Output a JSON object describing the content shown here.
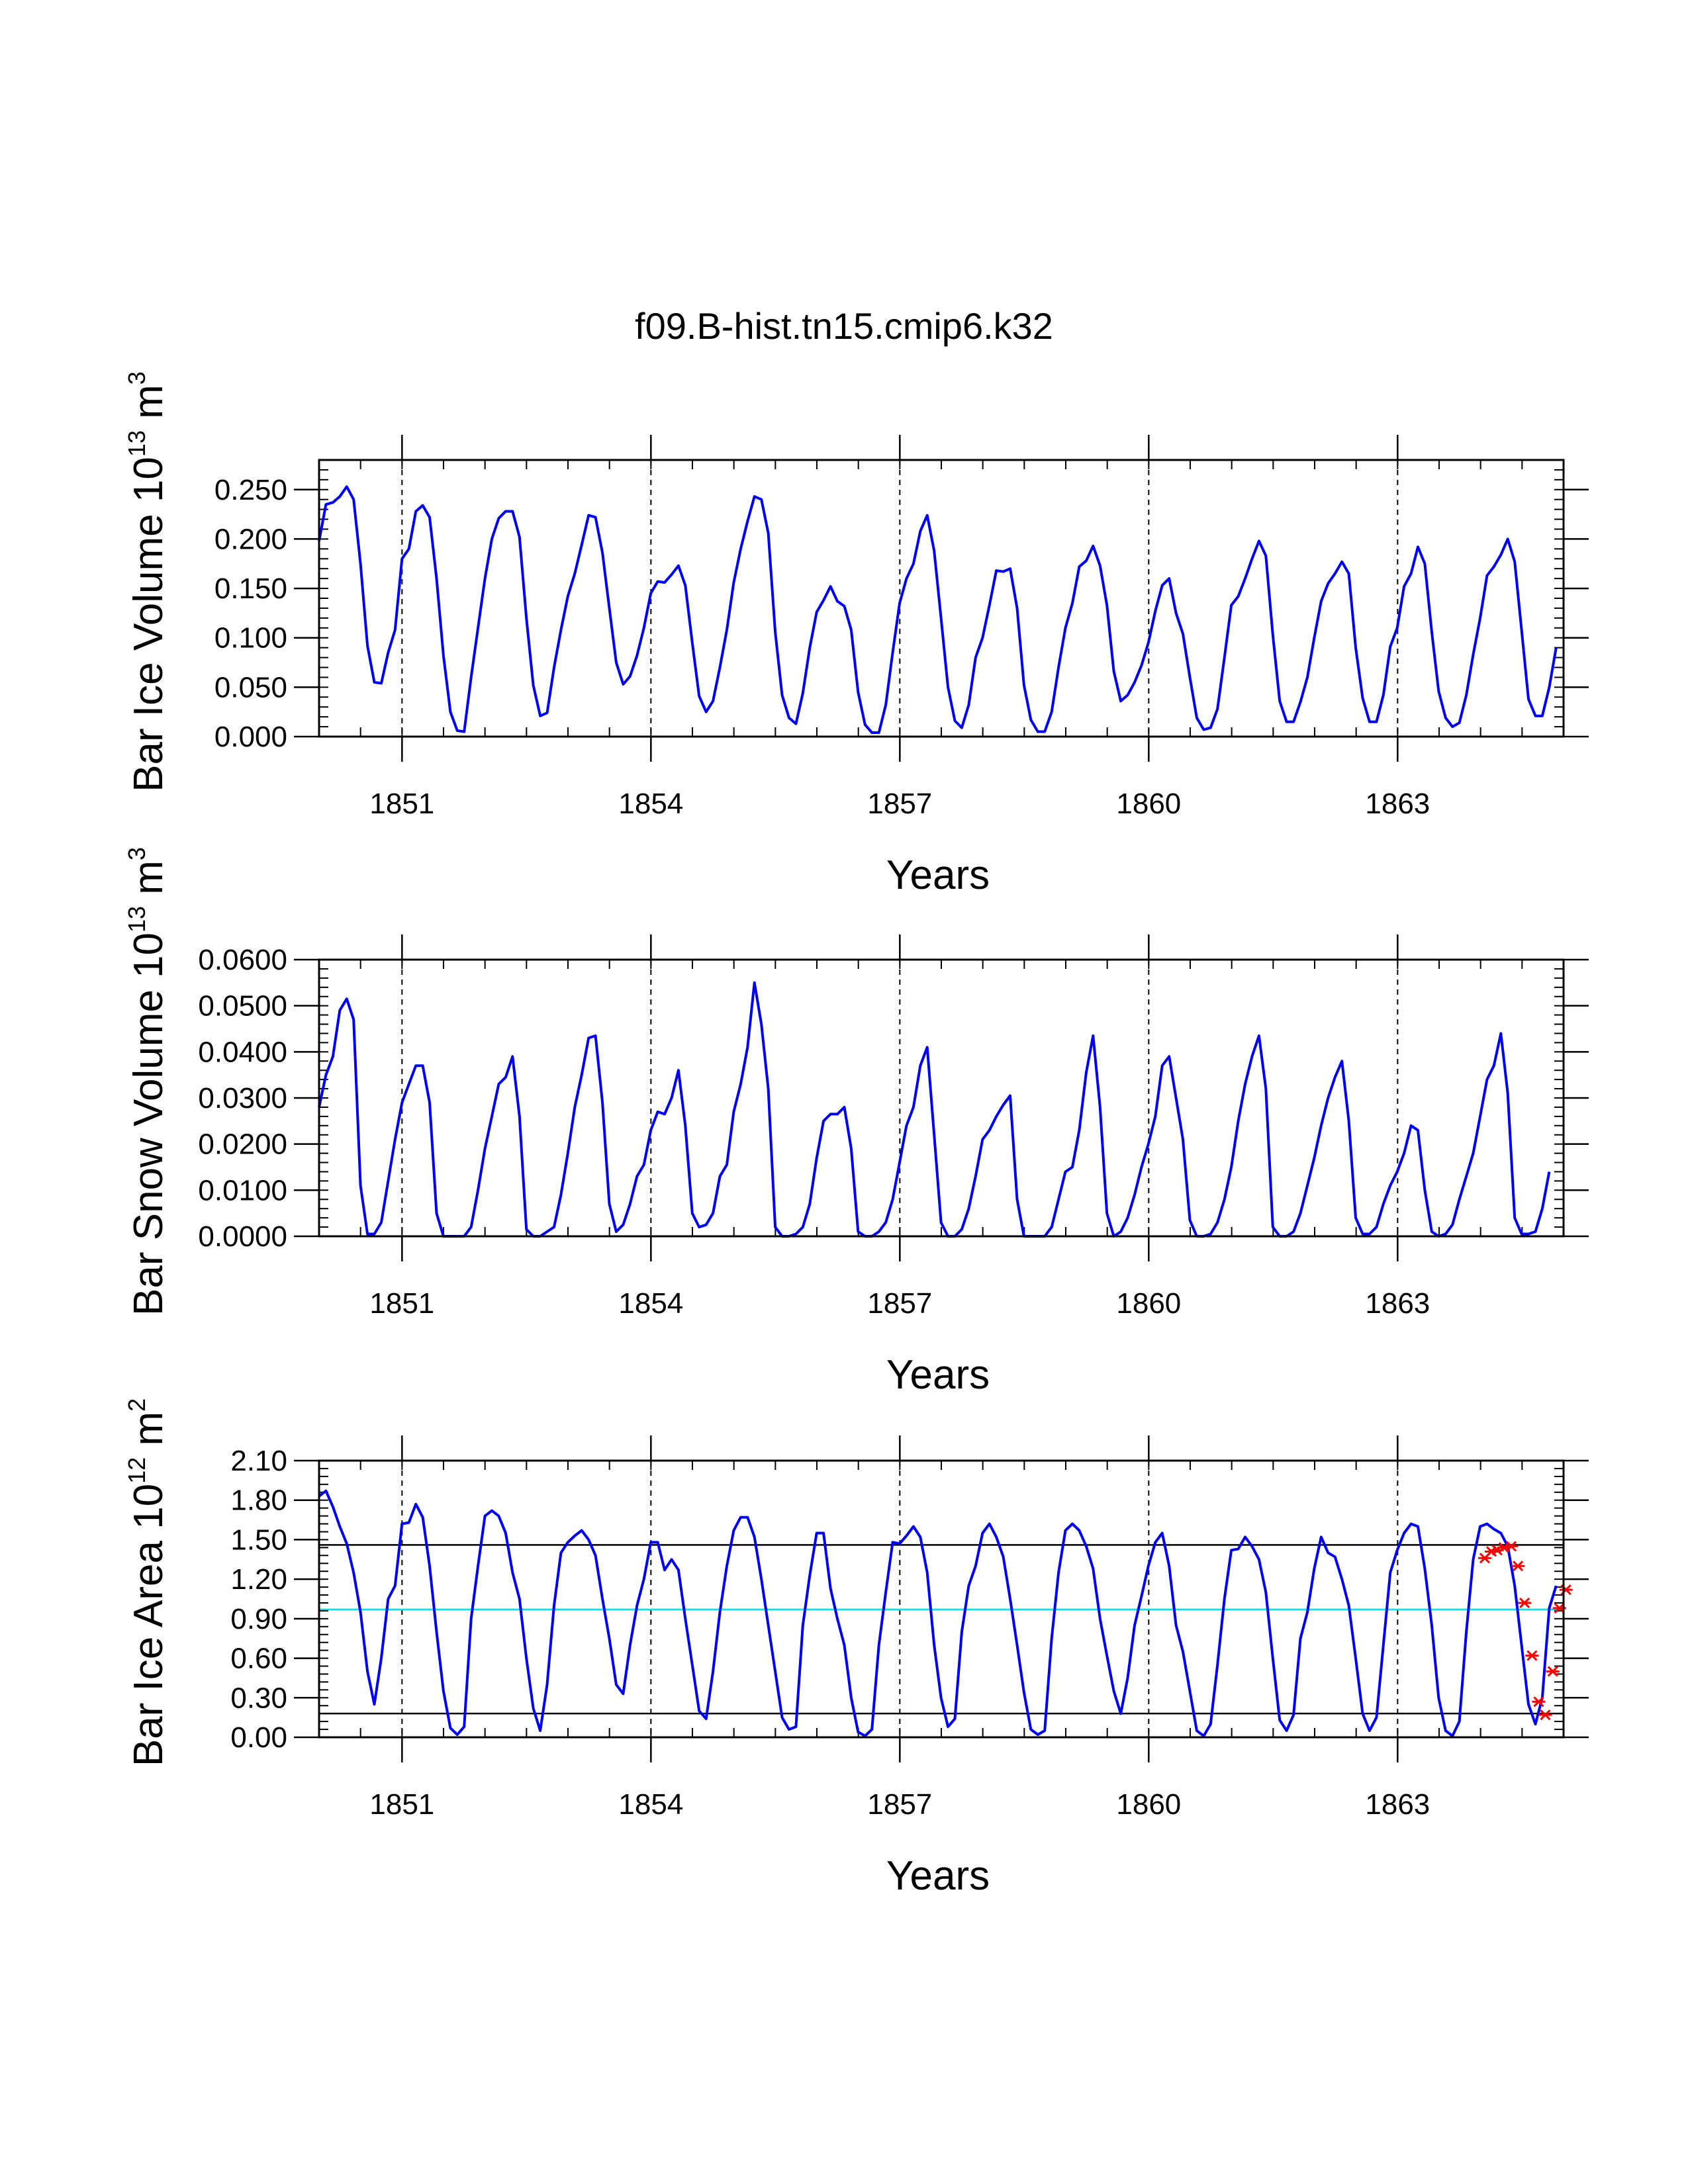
{
  "title": "f09.B-hist.tn15.cmip6.k32",
  "chart_data": [
    {
      "type": "line",
      "id": "ice-volume",
      "ylabel": "Bar Ice Volume 10",
      "ylabel_exp": "13",
      "ylabel_unit": " m",
      "ylabel_unit_exp": "3",
      "xlabel": "Years",
      "xlim": [
        1850.0,
        1865.0
      ],
      "ylim": [
        0.0,
        0.28
      ],
      "yticks": [
        "0.000",
        "0.050",
        "0.100",
        "0.150",
        "0.200",
        "0.250"
      ],
      "ytick_values": [
        0.0,
        0.05,
        0.1,
        0.15,
        0.2,
        0.25
      ],
      "xticks": [
        "1851",
        "1854",
        "1857",
        "1860",
        "1863"
      ],
      "xtick_values": [
        1851,
        1854,
        1857,
        1860,
        1863
      ],
      "vlines": [
        1851,
        1854,
        1857,
        1860,
        1863
      ],
      "hlines": [],
      "series": [
        {
          "name": "ice volume",
          "color": "#0000ff",
          "start_year": 1850.0,
          "step": 0.0833,
          "values": [
            0.198,
            0.235,
            0.237,
            0.243,
            0.253,
            0.24,
            0.175,
            0.092,
            0.055,
            0.054,
            0.085,
            0.108,
            0.18,
            0.19,
            0.228,
            0.234,
            0.222,
            0.16,
            0.082,
            0.025,
            0.006,
            0.005,
            0.06,
            0.11,
            0.16,
            0.2,
            0.221,
            0.228,
            0.228,
            0.202,
            0.12,
            0.052,
            0.021,
            0.024,
            0.07,
            0.108,
            0.142,
            0.165,
            0.194,
            0.224,
            0.222,
            0.186,
            0.13,
            0.075,
            0.053,
            0.061,
            0.082,
            0.11,
            0.145,
            0.157,
            0.156,
            0.164,
            0.173,
            0.153,
            0.095,
            0.041,
            0.025,
            0.036,
            0.07,
            0.108,
            0.156,
            0.19,
            0.218,
            0.243,
            0.24,
            0.206,
            0.106,
            0.042,
            0.019,
            0.013,
            0.044,
            0.09,
            0.126,
            0.138,
            0.152,
            0.137,
            0.132,
            0.108,
            0.045,
            0.012,
            0.004,
            0.004,
            0.032,
            0.085,
            0.135,
            0.16,
            0.175,
            0.208,
            0.224,
            0.188,
            0.12,
            0.05,
            0.016,
            0.009,
            0.032,
            0.08,
            0.1,
            0.133,
            0.168,
            0.167,
            0.17,
            0.13,
            0.052,
            0.017,
            0.005,
            0.005,
            0.025,
            0.07,
            0.11,
            0.135,
            0.172,
            0.178,
            0.193,
            0.173,
            0.133,
            0.066,
            0.036,
            0.042,
            0.055,
            0.072,
            0.095,
            0.127,
            0.153,
            0.16,
            0.125,
            0.104,
            0.06,
            0.019,
            0.007,
            0.009,
            0.028,
            0.08,
            0.133,
            0.142,
            0.16,
            0.18,
            0.198,
            0.183,
            0.103,
            0.036,
            0.015,
            0.015,
            0.035,
            0.06,
            0.1,
            0.137,
            0.155,
            0.165,
            0.177,
            0.165,
            0.09,
            0.039,
            0.015,
            0.015,
            0.042,
            0.091,
            0.11,
            0.152,
            0.165,
            0.192,
            0.175,
            0.106,
            0.046,
            0.019,
            0.01,
            0.014,
            0.042,
            0.083,
            0.12,
            0.163,
            0.172,
            0.184,
            0.2,
            0.177,
            0.108,
            0.038,
            0.021,
            0.021,
            0.05,
            0.09
          ]
        }
      ]
    },
    {
      "type": "line",
      "id": "snow-volume",
      "ylabel": "Bar Snow Volume 10",
      "ylabel_exp": "13",
      "ylabel_unit": " m",
      "ylabel_unit_exp": "3",
      "xlabel": "Years",
      "xlim": [
        1850.0,
        1865.0
      ],
      "ylim": [
        0.0,
        0.06
      ],
      "yticks": [
        "0.0000",
        "0.0100",
        "0.0200",
        "0.0300",
        "0.0400",
        "0.0500",
        "0.0600"
      ],
      "ytick_values": [
        0.0,
        0.01,
        0.02,
        0.03,
        0.04,
        0.05,
        0.06
      ],
      "xticks": [
        "1851",
        "1854",
        "1857",
        "1860",
        "1863"
      ],
      "xtick_values": [
        1851,
        1854,
        1857,
        1860,
        1863
      ],
      "vlines": [
        1851,
        1854,
        1857,
        1860,
        1863
      ],
      "hlines": [],
      "series": [
        {
          "name": "snow volume",
          "color": "#0000ff",
          "start_year": 1850.0,
          "step": 0.0833,
          "values": [
            0.028,
            0.035,
            0.039,
            0.049,
            0.0515,
            0.047,
            0.011,
            0.0005,
            0.0005,
            0.003,
            0.012,
            0.021,
            0.029,
            0.033,
            0.037,
            0.037,
            0.029,
            0.005,
            0.0,
            0.0,
            0.0,
            0.0,
            0.002,
            0.01,
            0.019,
            0.026,
            0.033,
            0.0345,
            0.039,
            0.026,
            0.0015,
            0.0,
            0.0,
            0.001,
            0.002,
            0.009,
            0.018,
            0.028,
            0.035,
            0.043,
            0.0435,
            0.029,
            0.007,
            0.001,
            0.0025,
            0.007,
            0.013,
            0.0155,
            0.023,
            0.027,
            0.0265,
            0.03,
            0.036,
            0.024,
            0.005,
            0.002,
            0.0025,
            0.005,
            0.013,
            0.0155,
            0.027,
            0.033,
            0.041,
            0.055,
            0.046,
            0.032,
            0.002,
            0.0,
            0.0,
            0.0005,
            0.002,
            0.007,
            0.017,
            0.025,
            0.0265,
            0.0265,
            0.028,
            0.019,
            0.001,
            0.0,
            0.0,
            0.001,
            0.003,
            0.008,
            0.016,
            0.024,
            0.028,
            0.037,
            0.041,
            0.022,
            0.003,
            0.0,
            0.0,
            0.0015,
            0.006,
            0.013,
            0.021,
            0.023,
            0.026,
            0.0285,
            0.0305,
            0.008,
            0.0,
            0.0,
            0.0,
            0.0,
            0.002,
            0.008,
            0.014,
            0.015,
            0.023,
            0.0355,
            0.0435,
            0.028,
            0.005,
            0.0,
            0.001,
            0.004,
            0.009,
            0.015,
            0.02,
            0.026,
            0.037,
            0.039,
            0.03,
            0.021,
            0.0035,
            0.0,
            0.0,
            0.0005,
            0.003,
            0.008,
            0.015,
            0.025,
            0.033,
            0.039,
            0.0435,
            0.032,
            0.002,
            0.0,
            0.0,
            0.001,
            0.005,
            0.011,
            0.017,
            0.024,
            0.03,
            0.0345,
            0.038,
            0.025,
            0.004,
            0.0005,
            0.0005,
            0.002,
            0.007,
            0.011,
            0.014,
            0.018,
            0.024,
            0.023,
            0.01,
            0.001,
            0.0,
            0.0005,
            0.0025,
            0.008,
            0.013,
            0.018,
            0.026,
            0.034,
            0.037,
            0.044,
            0.031,
            0.004,
            0.0005,
            0.0005,
            0.001,
            0.006,
            0.014
          ]
        }
      ]
    },
    {
      "type": "line",
      "id": "ice-area",
      "ylabel": "Bar Ice Area 10",
      "ylabel_exp": "12",
      "ylabel_unit": " m",
      "ylabel_unit_exp": "2",
      "xlabel": "Years",
      "xlim": [
        1850.0,
        1865.0
      ],
      "ylim": [
        0.0,
        2.1
      ],
      "yticks": [
        "0.00",
        "0.30",
        "0.60",
        "0.90",
        "1.20",
        "1.50",
        "1.80",
        "2.10"
      ],
      "ytick_values": [
        0.0,
        0.3,
        0.6,
        0.9,
        1.2,
        1.5,
        1.8,
        2.1
      ],
      "xticks": [
        "1851",
        "1854",
        "1857",
        "1860",
        "1863"
      ],
      "xtick_values": [
        1851,
        1854,
        1857,
        1860,
        1863
      ],
      "vlines": [
        1851,
        1854,
        1857,
        1860,
        1863
      ],
      "hlines": [
        {
          "name": "upper reference",
          "value": 1.46,
          "color": "#000000"
        },
        {
          "name": "mean reference",
          "value": 0.97,
          "color": "#00e5e5"
        },
        {
          "name": "lower reference",
          "value": 0.18,
          "color": "#000000"
        }
      ],
      "series": [
        {
          "name": "ice area",
          "color": "#0000ff",
          "start_year": 1850.0,
          "step": 0.0833,
          "values": [
            1.83,
            1.87,
            1.75,
            1.6,
            1.47,
            1.25,
            0.95,
            0.5,
            0.25,
            0.6,
            1.05,
            1.15,
            1.62,
            1.63,
            1.77,
            1.67,
            1.3,
            0.8,
            0.35,
            0.07,
            0.02,
            0.08,
            0.9,
            1.3,
            1.68,
            1.72,
            1.68,
            1.55,
            1.25,
            1.05,
            0.6,
            0.22,
            0.05,
            0.4,
            1.0,
            1.4,
            1.48,
            1.53,
            1.57,
            1.5,
            1.38,
            1.05,
            0.75,
            0.4,
            0.33,
            0.7,
            1.0,
            1.2,
            1.48,
            1.48,
            1.27,
            1.35,
            1.27,
            0.9,
            0.55,
            0.2,
            0.14,
            0.5,
            0.95,
            1.3,
            1.57,
            1.67,
            1.67,
            1.52,
            1.2,
            0.85,
            0.5,
            0.15,
            0.06,
            0.08,
            0.85,
            1.23,
            1.55,
            1.55,
            1.13,
            0.9,
            0.7,
            0.3,
            0.04,
            0.01,
            0.06,
            0.7,
            1.1,
            1.48,
            1.47,
            1.53,
            1.6,
            1.52,
            1.25,
            0.7,
            0.3,
            0.08,
            0.14,
            0.8,
            1.15,
            1.3,
            1.55,
            1.62,
            1.52,
            1.37,
            1.05,
            0.7,
            0.34,
            0.06,
            0.02,
            0.05,
            0.75,
            1.25,
            1.57,
            1.62,
            1.57,
            1.45,
            1.28,
            0.9,
            0.62,
            0.35,
            0.18,
            0.45,
            0.85,
            1.07,
            1.3,
            1.48,
            1.55,
            1.3,
            0.85,
            0.65,
            0.35,
            0.05,
            0.01,
            0.1,
            0.55,
            1.05,
            1.42,
            1.43,
            1.52,
            1.45,
            1.35,
            1.1,
            0.6,
            0.13,
            0.05,
            0.17,
            0.75,
            0.95,
            1.28,
            1.52,
            1.4,
            1.37,
            1.2,
            1.0,
            0.6,
            0.18,
            0.05,
            0.15,
            0.7,
            1.25,
            1.42,
            1.55,
            1.62,
            1.6,
            1.28,
            0.85,
            0.3,
            0.05,
            0.01,
            0.12,
            0.8,
            1.35,
            1.6,
            1.62,
            1.58,
            1.55,
            1.45,
            1.15,
            0.7,
            0.25,
            0.1,
            0.3,
            0.98,
            1.15
          ]
        },
        {
          "name": "markers",
          "color": "#ff0000",
          "marker": "star",
          "x": [
            1864.05,
            1864.13,
            1864.2,
            1864.28,
            1864.37,
            1864.45,
            1864.53,
            1864.62,
            1864.7,
            1864.78,
            1864.87,
            1864.95,
            1865.03
          ],
          "values": [
            1.36,
            1.41,
            1.42,
            1.44,
            1.45,
            1.3,
            1.02,
            0.62,
            0.27,
            0.17,
            0.5,
            0.98,
            1.12
          ]
        }
      ]
    }
  ]
}
